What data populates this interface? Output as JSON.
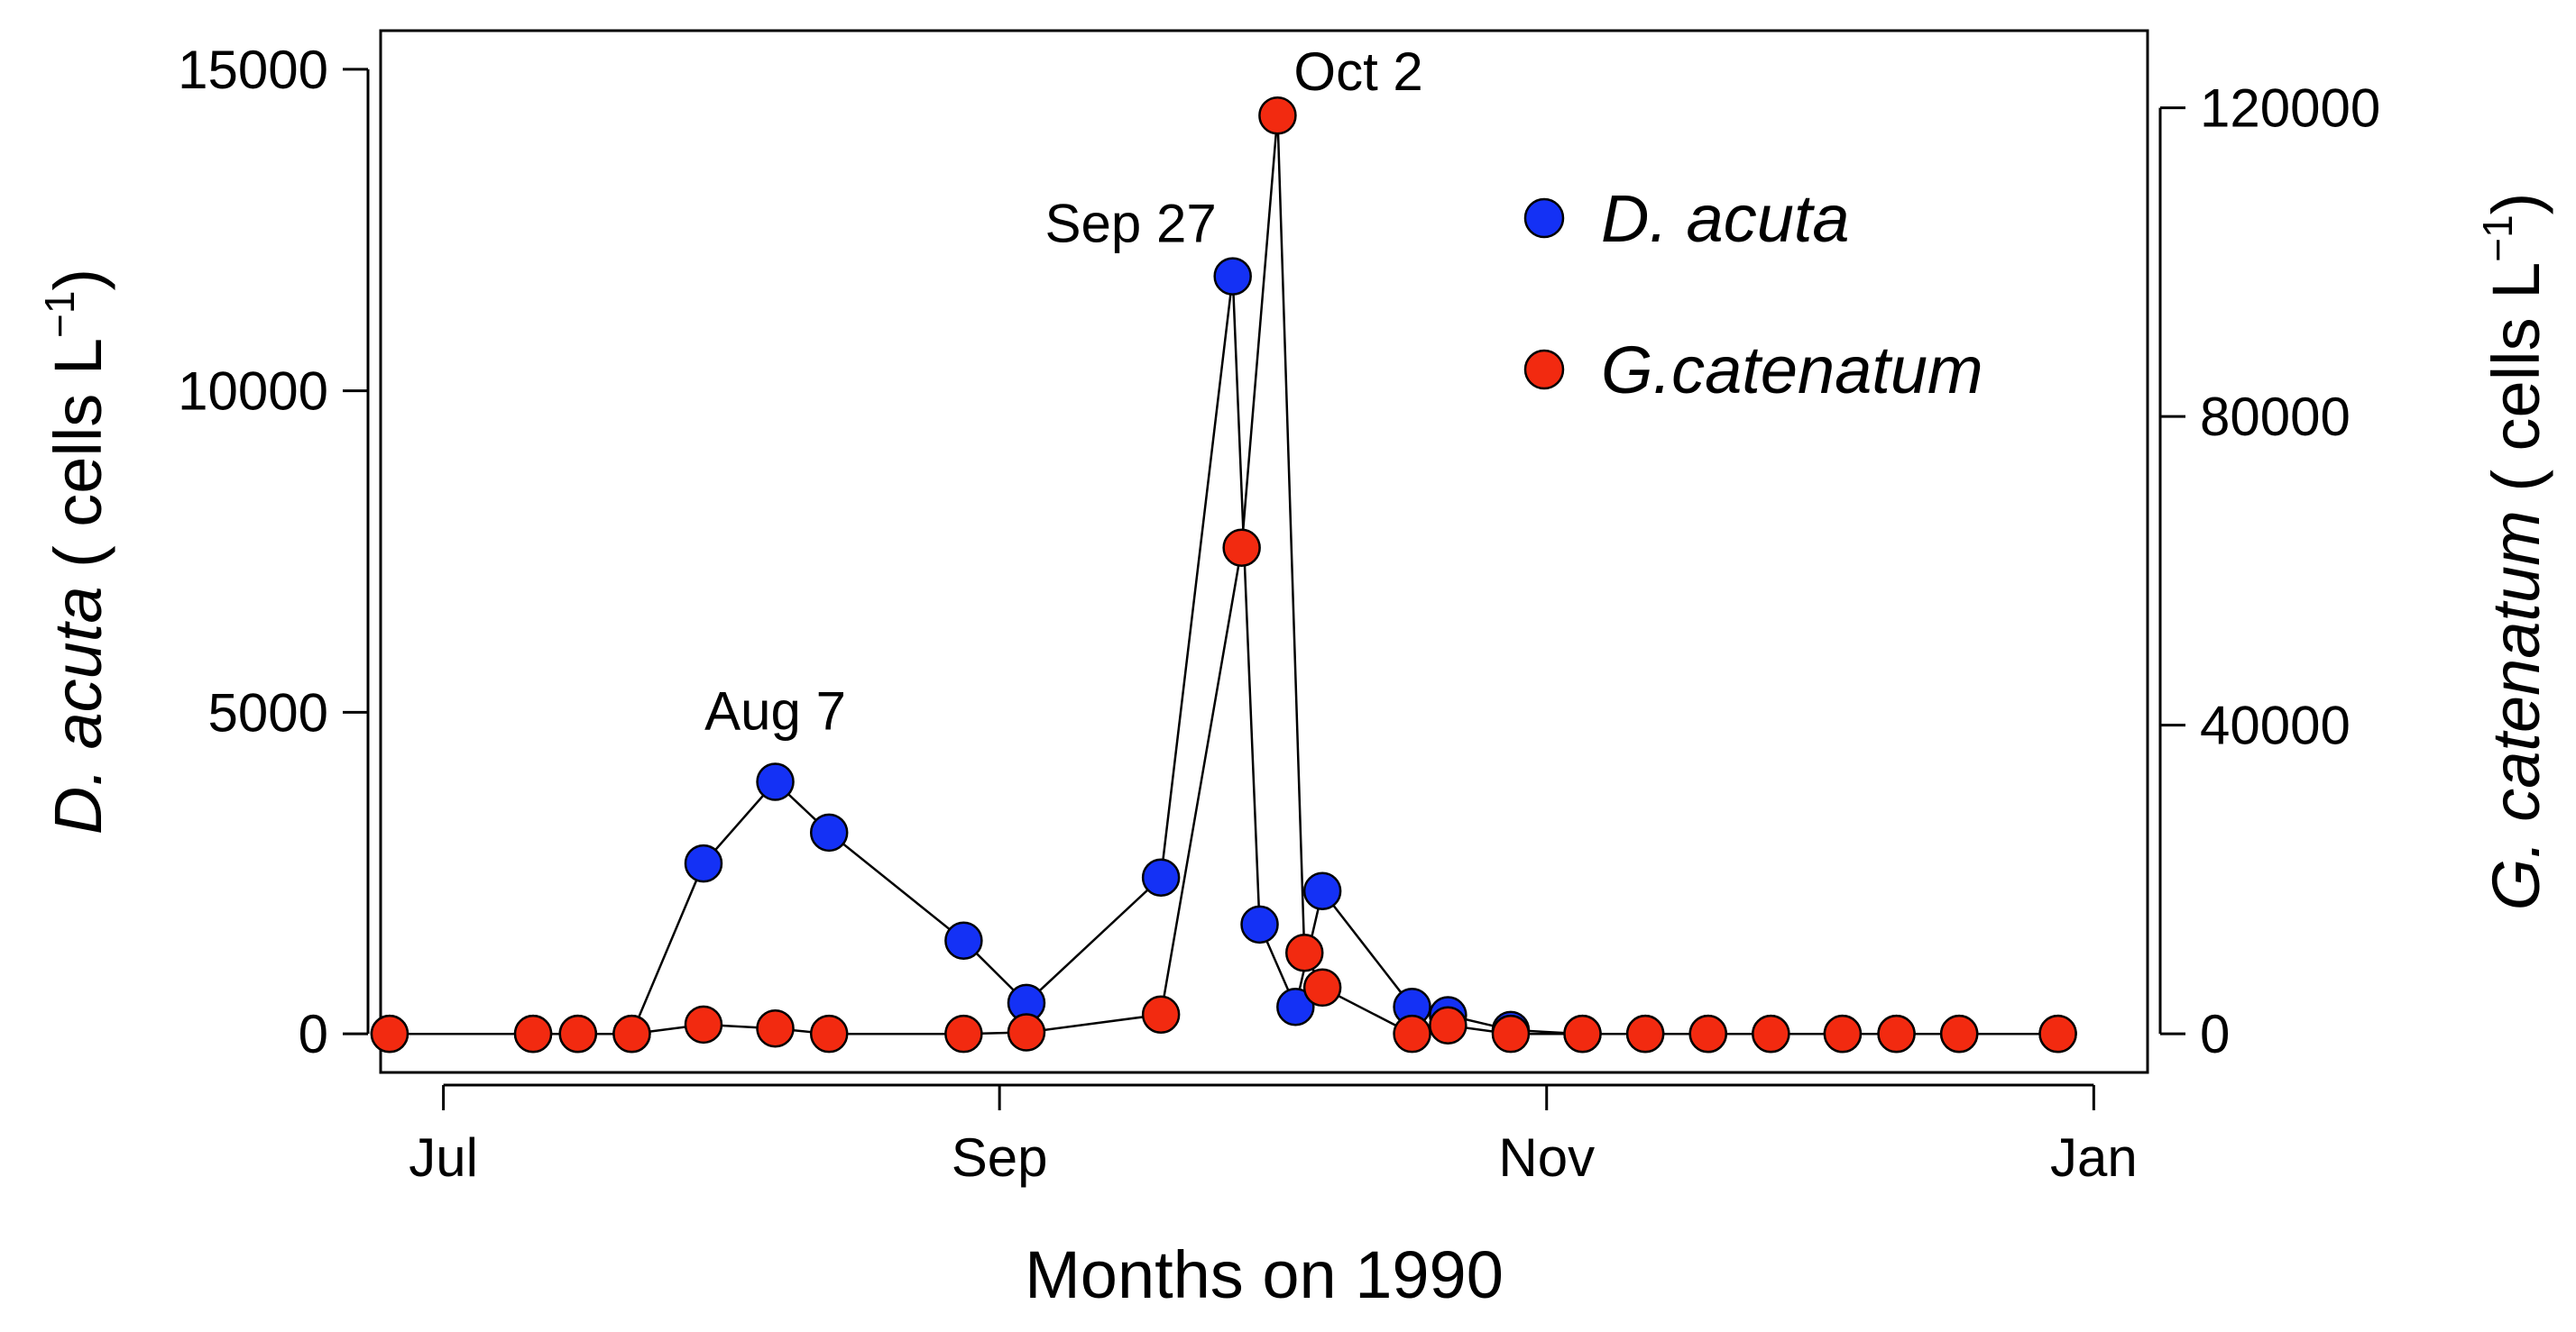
{
  "chart_data": {
    "type": "line",
    "xlabel": "Months on 1990",
    "ylabel_left": {
      "italic": "D. acuta",
      "rest": " ( cells L",
      "sup": "−1",
      "close": ")"
    },
    "ylabel_right": {
      "italic": "G. catenatum",
      "rest": " ( cells L",
      "sup": "−1",
      "close": ")"
    },
    "x_ticks": [
      {
        "date": "1990-07-01",
        "label": "Jul"
      },
      {
        "date": "1990-09-01",
        "label": "Sep"
      },
      {
        "date": "1990-11-01",
        "label": "Nov"
      },
      {
        "date": "1991-01-01",
        "label": "Jan"
      }
    ],
    "xlim": [
      "1990-06-24",
      "1991-01-07"
    ],
    "y_left": {
      "lim": [
        -600,
        15600
      ],
      "ticks": [
        "0",
        "5000",
        "10000",
        "15000"
      ]
    },
    "y_right": {
      "lim": [
        -5000,
        130000
      ],
      "ticks": [
        "0",
        "40000",
        "80000",
        "120000"
      ]
    },
    "grid": false,
    "legend_position": "top-right",
    "series": [
      {
        "name": "D. acuta",
        "axis": "left",
        "color": "#1431F5",
        "points": [
          {
            "x": "1990-06-25",
            "y": 0
          },
          {
            "x": "1990-07-11",
            "y": 0
          },
          {
            "x": "1990-07-16",
            "y": 0
          },
          {
            "x": "1990-07-22",
            "y": 0
          },
          {
            "x": "1990-07-30",
            "y": 2650
          },
          {
            "x": "1990-08-07",
            "y": 3920
          },
          {
            "x": "1990-08-13",
            "y": 3130
          },
          {
            "x": "1990-08-28",
            "y": 1450
          },
          {
            "x": "1990-09-04",
            "y": 480
          },
          {
            "x": "1990-09-19",
            "y": 2430
          },
          {
            "x": "1990-09-27",
            "y": 11780
          },
          {
            "x": "1990-09-30",
            "y": 1700
          },
          {
            "x": "1990-10-04",
            "y": 420
          },
          {
            "x": "1990-10-07",
            "y": 2220
          },
          {
            "x": "1990-10-17",
            "y": 420
          },
          {
            "x": "1990-10-21",
            "y": 290
          },
          {
            "x": "1990-10-28",
            "y": 60
          },
          {
            "x": "1990-11-05",
            "y": 0
          },
          {
            "x": "1990-11-12",
            "y": 0
          },
          {
            "x": "1990-11-19",
            "y": 0
          },
          {
            "x": "1990-11-26",
            "y": 0
          },
          {
            "x": "1990-12-04",
            "y": 0
          },
          {
            "x": "1990-12-10",
            "y": 0
          },
          {
            "x": "1990-12-17",
            "y": 0
          },
          {
            "x": "1990-12-28",
            "y": 0
          }
        ]
      },
      {
        "name": "G.catenatum",
        "axis": "right",
        "color": "#F22A10",
        "points": [
          {
            "x": "1990-06-25",
            "y": 0
          },
          {
            "x": "1990-07-11",
            "y": 0
          },
          {
            "x": "1990-07-16",
            "y": 0
          },
          {
            "x": "1990-07-22",
            "y": 0
          },
          {
            "x": "1990-07-30",
            "y": 1200
          },
          {
            "x": "1990-08-07",
            "y": 700
          },
          {
            "x": "1990-08-13",
            "y": 0
          },
          {
            "x": "1990-08-28",
            "y": 0
          },
          {
            "x": "1990-09-04",
            "y": 200
          },
          {
            "x": "1990-09-19",
            "y": 2500
          },
          {
            "x": "1990-09-28",
            "y": 63000
          },
          {
            "x": "1990-10-02",
            "y": 119000
          },
          {
            "x": "1990-10-05",
            "y": 10500
          },
          {
            "x": "1990-10-07",
            "y": 6000
          },
          {
            "x": "1990-10-17",
            "y": 0
          },
          {
            "x": "1990-10-21",
            "y": 1100
          },
          {
            "x": "1990-10-28",
            "y": 0
          },
          {
            "x": "1990-11-05",
            "y": 0
          },
          {
            "x": "1990-11-12",
            "y": 0
          },
          {
            "x": "1990-11-19",
            "y": 0
          },
          {
            "x": "1990-11-26",
            "y": 0
          },
          {
            "x": "1990-12-04",
            "y": 0
          },
          {
            "x": "1990-12-10",
            "y": 0
          },
          {
            "x": "1990-12-17",
            "y": 0
          },
          {
            "x": "1990-12-28",
            "y": 0
          }
        ]
      }
    ],
    "annotations": [
      {
        "text": "Aug 7",
        "series": 0,
        "point": 5
      },
      {
        "text": "Sep 27",
        "series": 0,
        "point": 10
      },
      {
        "text": "Oct 2",
        "series": 1,
        "point": 11
      }
    ],
    "legend": [
      {
        "label": "D. acuta",
        "color": "#1431F5"
      },
      {
        "label": "G.catenatum",
        "color": "#F22A10"
      }
    ]
  }
}
